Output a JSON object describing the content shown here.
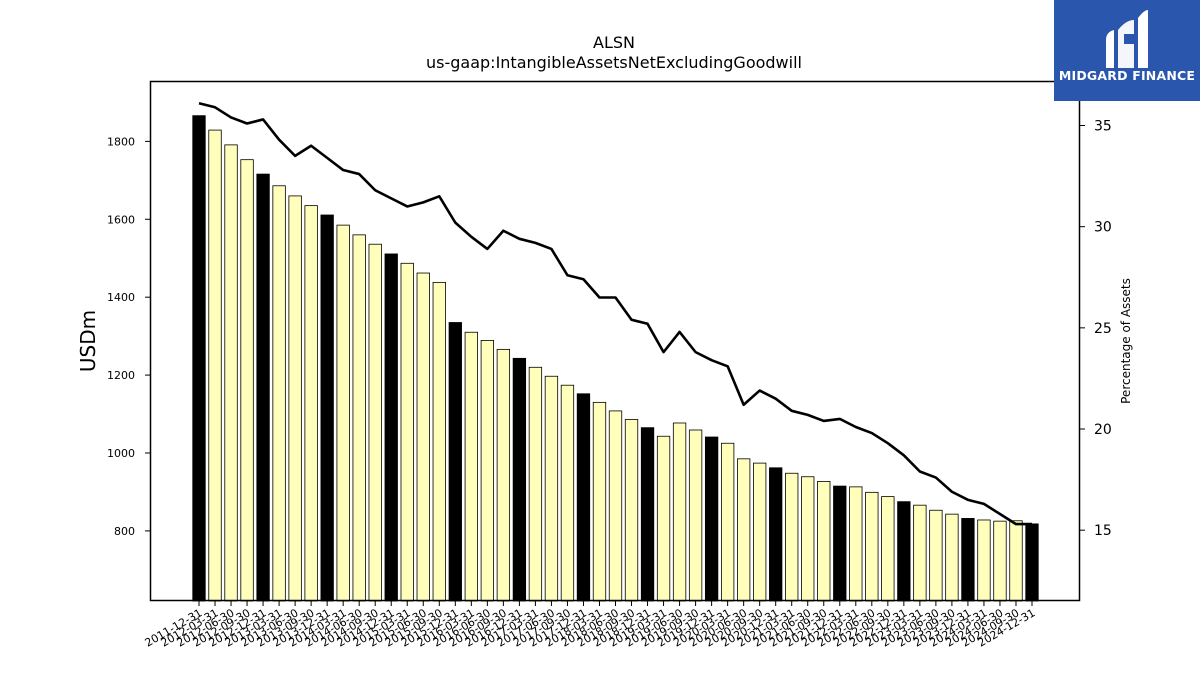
{
  "chart_data": {
    "type": "bar",
    "title": "ALSN",
    "subtitle": "us-gaap:IntangibleAssetsNetExcludingGoodwill",
    "ylabel": "USDm",
    "y2label": "Percentage of Assets",
    "ylim": [
      620,
      1955
    ],
    "y2lim": [
      11.5,
      37.2
    ],
    "yticks": [
      800,
      1000,
      1200,
      1400,
      1600,
      1800
    ],
    "y2ticks": [
      15,
      20,
      25,
      30,
      35
    ],
    "legend": "none",
    "grid": false,
    "colors": {
      "annual": "#000000",
      "quarterly": "#ffffbb",
      "line": "#000000"
    },
    "categories": [
      "2011-12-31",
      "2012-03-31",
      "2012-06-30",
      "2012-09-30",
      "2012-12-31",
      "2013-03-31",
      "2013-06-30",
      "2013-09-30",
      "2013-12-31",
      "2014-03-31",
      "2014-06-30",
      "2014-09-30",
      "2014-12-31",
      "2015-03-31",
      "2015-06-30",
      "2015-09-30",
      "2015-12-31",
      "2016-03-31",
      "2016-06-30",
      "2016-09-30",
      "2016-12-31",
      "2017-03-31",
      "2017-06-30",
      "2017-09-30",
      "2017-12-31",
      "2018-03-31",
      "2018-06-30",
      "2018-09-30",
      "2018-12-31",
      "2019-03-31",
      "2019-06-30",
      "2019-09-30",
      "2019-12-31",
      "2020-03-31",
      "2020-06-30",
      "2020-09-30",
      "2020-12-31",
      "2021-03-31",
      "2021-06-30",
      "2021-09-30",
      "2021-12-31",
      "2022-03-31",
      "2022-06-30",
      "2022-09-30",
      "2022-12-31",
      "2023-03-31",
      "2023-06-30",
      "2023-09-30",
      "2023-12-31",
      "2024-03-31",
      "2024-06-30",
      "2024-09-30",
      "2024-12-31"
    ],
    "series": [
      {
        "name": "",
        "type": "bar",
        "values": [
          1866,
          1829,
          1791,
          1753,
          1716,
          1686,
          1660,
          1635,
          1611,
          1585,
          1560,
          1536,
          1511,
          1487,
          1462,
          1438,
          1335,
          1310,
          1289,
          1266,
          1243,
          1220,
          1197,
          1174,
          1152,
          1130,
          1108,
          1086,
          1065,
          1043,
          1077,
          1059,
          1041,
          1025,
          985,
          974,
          962,
          948,
          939,
          927,
          915,
          913,
          899,
          888,
          875,
          866,
          853,
          843,
          832,
          828,
          825,
          826,
          818
        ],
        "annual": [
          true,
          false,
          false,
          false,
          true,
          false,
          false,
          false,
          true,
          false,
          false,
          false,
          true,
          false,
          false,
          false,
          true,
          false,
          false,
          false,
          true,
          false,
          false,
          false,
          true,
          false,
          false,
          false,
          true,
          false,
          false,
          false,
          true,
          false,
          false,
          false,
          true,
          false,
          false,
          false,
          true,
          false,
          false,
          false,
          true,
          false,
          false,
          false,
          true,
          false,
          false,
          false,
          true
        ]
      },
      {
        "name": "",
        "type": "line",
        "axis": "right",
        "values": [
          36.1,
          35.9,
          35.4,
          35.1,
          35.3,
          34.3,
          33.5,
          34.0,
          33.4,
          32.8,
          32.6,
          31.8,
          31.4,
          31.0,
          31.2,
          31.5,
          30.2,
          29.5,
          28.9,
          29.8,
          29.4,
          29.2,
          28.9,
          27.6,
          27.4,
          26.5,
          26.5,
          25.4,
          25.2,
          23.8,
          24.8,
          23.8,
          23.4,
          23.1,
          21.2,
          21.9,
          21.5,
          20.9,
          20.7,
          20.4,
          20.5,
          20.1,
          19.8,
          19.3,
          18.7,
          17.9,
          17.6,
          16.9,
          16.5,
          16.3,
          15.8,
          15.3,
          15.3
        ]
      }
    ]
  },
  "logo": {
    "text": "MIDGARD FINANCE"
  }
}
